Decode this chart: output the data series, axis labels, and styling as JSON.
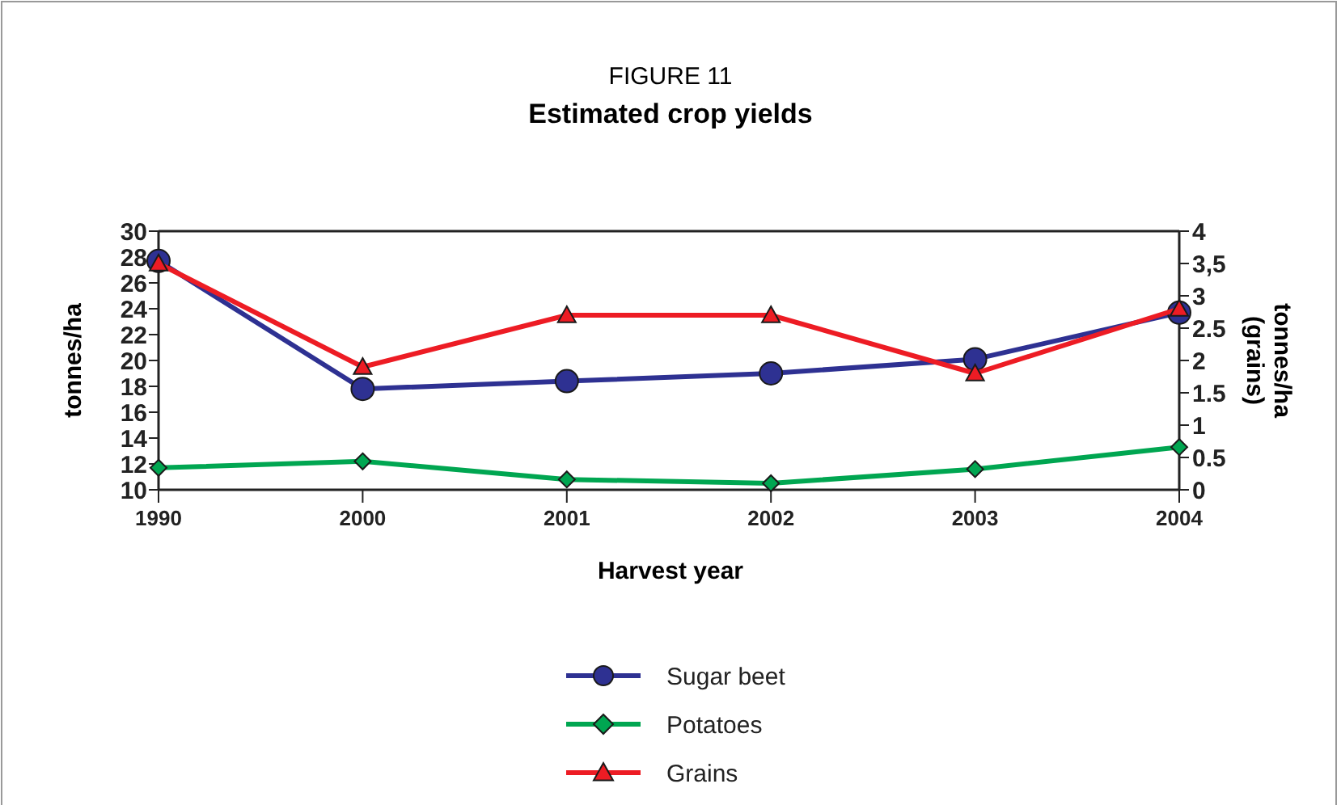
{
  "chart_data": {
    "type": "line",
    "title": "FIGURE 11",
    "subtitle": "Estimated crop yields",
    "xlabel": "Harvest year",
    "ylabel": "tonnes/ha",
    "y2label": "tonnes/ha (grains)",
    "categories": [
      "1990",
      "2000",
      "2001",
      "2002",
      "2003",
      "2004"
    ],
    "series": [
      {
        "name": "Sugar beet",
        "color": "#2e3192",
        "marker": "circle",
        "values": [
          27.7,
          17.8,
          18.4,
          19.0,
          20.1,
          23.7
        ]
      },
      {
        "name": "Potatoes",
        "color": "#00a651",
        "marker": "diamond",
        "values": [
          11.7,
          12.2,
          10.8,
          10.5,
          11.6,
          13.3
        ]
      },
      {
        "name": "Grains",
        "color": "#ed1c24",
        "marker": "triangle",
        "axis": "y2",
        "values": [
          3.5,
          1.9,
          2.7,
          2.7,
          1.8,
          2.8
        ]
      }
    ],
    "ylim": [
      10,
      30
    ],
    "yticks": [
      10,
      12,
      14,
      16,
      18,
      20,
      22,
      24,
      26,
      28,
      30
    ],
    "y2lim": [
      0,
      4
    ],
    "y2ticks": [
      0,
      0.5,
      1,
      1.5,
      2,
      2.5,
      3,
      {
        "value": 3.5,
        "label": "3,5"
      },
      4
    ],
    "legend": "bottom",
    "grid": false,
    "line_style": "solid"
  }
}
